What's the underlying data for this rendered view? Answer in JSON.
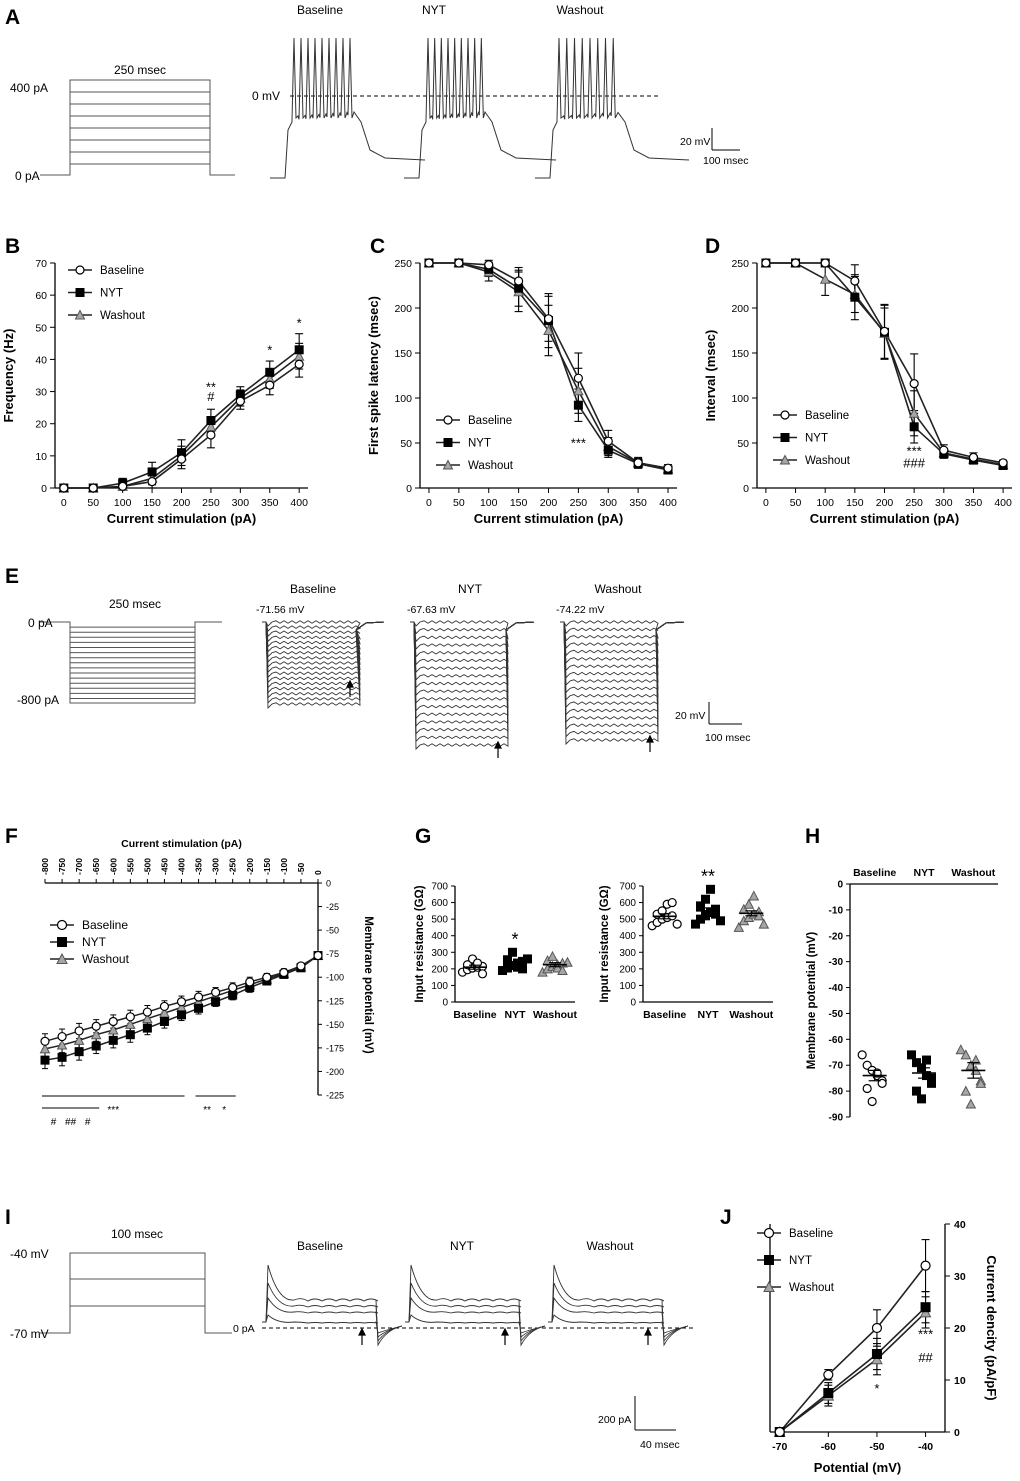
{
  "panels": {
    "A": {
      "label": "A",
      "step_duration": "250 msec",
      "step_top": "400 pA",
      "step_bottom": "0 pA",
      "zero_line": "0 mV",
      "conditions": [
        "Baseline",
        "NYT",
        "Washout"
      ],
      "scale_v": "20 mV",
      "scale_t": "100 msec"
    },
    "E": {
      "label": "E",
      "step_duration": "250 msec",
      "step_top": "0 pA",
      "step_bottom": "-800 pA",
      "conditions": [
        "Baseline",
        "NYT",
        "Washout"
      ],
      "potentials": [
        "-71.56 mV",
        "-67.63 mV",
        "-74.22 mV"
      ],
      "scale_v": "20 mV",
      "scale_t": "100 msec"
    },
    "I": {
      "label": "I",
      "step_duration": "100 msec",
      "step_top": "-40 mV",
      "step_bottom": "-70 mV",
      "zero_line": "0 pA",
      "conditions": [
        "Baseline",
        "NYT",
        "Washout"
      ],
      "scale_i": "200 pA",
      "scale_t": "40 msec"
    }
  },
  "colors": {
    "baseline": "#ffffff",
    "nyt": "#000000",
    "washout": "#a6a6a6",
    "line": "#222222"
  },
  "chart_data": [
    {
      "panel": "B",
      "type": "line",
      "ylabel": "Frequency (Hz)",
      "xlabel": "Current stimulation (pA)",
      "ylim": [
        0,
        70
      ],
      "yticks": [
        0,
        10,
        20,
        30,
        40,
        50,
        60,
        70
      ],
      "x": [
        0,
        50,
        100,
        150,
        200,
        250,
        300,
        350,
        400
      ],
      "legend": [
        "Baseline",
        "NYT",
        "Washout"
      ],
      "series": [
        {
          "name": "Baseline",
          "values": [
            0,
            0,
            0.5,
            2,
            9,
            16.5,
            27,
            32,
            38.5
          ],
          "err": [
            0,
            0,
            0.8,
            2,
            3,
            4,
            2.5,
            3,
            4
          ]
        },
        {
          "name": "NYT",
          "values": [
            0,
            0,
            1.5,
            5,
            11,
            21,
            29,
            36,
            43
          ],
          "err": [
            0,
            0,
            1.5,
            3,
            4,
            3.5,
            2.5,
            3.5,
            5
          ]
        },
        {
          "name": "Washout",
          "values": [
            0,
            0,
            0.5,
            3,
            10,
            19,
            28,
            34,
            41
          ],
          "err": [
            0,
            0,
            0.8,
            2,
            3,
            3,
            2.5,
            3,
            4
          ]
        }
      ],
      "annotations": [
        {
          "x": 250,
          "y": 30,
          "text": "**"
        },
        {
          "x": 250,
          "y": 27,
          "text": "#"
        },
        {
          "x": 350,
          "y": 41.5,
          "text": "*"
        },
        {
          "x": 400,
          "y": 50,
          "text": "*"
        }
      ]
    },
    {
      "panel": "C",
      "type": "line",
      "ylabel": "First spike latency (msec)",
      "xlabel": "Current stimulation (pA)",
      "ylim": [
        0,
        250
      ],
      "yticks": [
        0,
        50,
        100,
        150,
        200,
        250
      ],
      "x": [
        0,
        50,
        100,
        150,
        200,
        250,
        300,
        350,
        400
      ],
      "legend": [
        "Baseline",
        "NYT",
        "Washout"
      ],
      "series": [
        {
          "name": "Baseline",
          "values": [
            250,
            250,
            248,
            230,
            188,
            122,
            52,
            28,
            22
          ],
          "err": [
            0,
            0,
            5,
            15,
            25,
            28,
            12,
            6,
            4
          ]
        },
        {
          "name": "NYT",
          "values": [
            250,
            250,
            243,
            222,
            186,
            92,
            42,
            27,
            20
          ],
          "err": [
            0,
            0,
            8,
            20,
            30,
            18,
            8,
            5,
            3
          ]
        },
        {
          "name": "Washout",
          "values": [
            250,
            250,
            240,
            218,
            175,
            108,
            46,
            28,
            21
          ],
          "err": [
            0,
            0,
            10,
            22,
            28,
            25,
            10,
            5,
            3
          ]
        }
      ],
      "annotations": [
        {
          "x": 250,
          "y": 45,
          "text": "***"
        }
      ]
    },
    {
      "panel": "D",
      "type": "line",
      "ylabel": "Interval (msec)",
      "xlabel": "Current stimulation (pA)",
      "ylim": [
        0,
        250
      ],
      "yticks": [
        0,
        50,
        100,
        150,
        200,
        250
      ],
      "x": [
        0,
        50,
        100,
        150,
        200,
        250,
        300,
        350,
        400
      ],
      "legend": [
        "Baseline",
        "NYT",
        "Washout"
      ],
      "series": [
        {
          "name": "Baseline",
          "values": [
            250,
            250,
            250,
            230,
            174,
            116,
            42,
            34,
            28
          ],
          "err": [
            0,
            0,
            0,
            18,
            30,
            33,
            6,
            5,
            3
          ]
        },
        {
          "name": "NYT",
          "values": [
            250,
            250,
            250,
            212,
            173,
            68,
            38,
            31,
            25
          ],
          "err": [
            0,
            0,
            0,
            25,
            30,
            18,
            5,
            4,
            3
          ]
        },
        {
          "name": "Washout",
          "values": [
            250,
            250,
            232,
            215,
            172,
            83,
            39,
            32,
            26
          ],
          "err": [
            0,
            0,
            18,
            20,
            28,
            25,
            5,
            4,
            3
          ]
        }
      ],
      "annotations": [
        {
          "x": 250,
          "y": 36,
          "text": "***"
        },
        {
          "x": 250,
          "y": 23,
          "text": "###"
        }
      ]
    },
    {
      "panel": "F",
      "type": "line",
      "ylabel": "Membrane potential (mV)",
      "xlabel": "Current stimulation (pA)",
      "ylim": [
        -225,
        0
      ],
      "yticks": [
        0,
        -25,
        -50,
        -75,
        -100,
        -125,
        -150,
        -175,
        -200,
        -225
      ],
      "xlim": [
        -800,
        0
      ],
      "xticks": [
        -800,
        -750,
        -700,
        -650,
        -600,
        -550,
        -500,
        -450,
        -400,
        -350,
        -300,
        -250,
        -200,
        -150,
        -100,
        -50,
        0
      ],
      "x": [
        -800,
        -750,
        -700,
        -650,
        -600,
        -550,
        -500,
        -450,
        -400,
        -350,
        -300,
        -250,
        -200,
        -150,
        -100,
        -50,
        0
      ],
      "legend": [
        "Baseline",
        "NYT",
        "Washout"
      ],
      "series": [
        {
          "name": "Baseline",
          "values": [
            -168,
            -163,
            -157,
            -152,
            -147,
            -142,
            -137,
            -131,
            -126,
            -121,
            -116,
            -111,
            -105,
            -100,
            -95,
            -88,
            -77
          ],
          "err": [
            8,
            8,
            8,
            7,
            7,
            7,
            7,
            6,
            6,
            6,
            5,
            5,
            5,
            4,
            4,
            3,
            2
          ]
        },
        {
          "name": "NYT",
          "values": [
            -188,
            -185,
            -179,
            -173,
            -167,
            -161,
            -154,
            -147,
            -140,
            -133,
            -126,
            -119,
            -111,
            -104,
            -97,
            -90,
            -77
          ],
          "err": [
            9,
            9,
            9,
            8,
            8,
            8,
            7,
            7,
            6,
            6,
            5,
            5,
            5,
            4,
            4,
            3,
            2
          ]
        },
        {
          "name": "Washout",
          "values": [
            -176,
            -172,
            -167,
            -161,
            -156,
            -150,
            -144,
            -138,
            -132,
            -126,
            -120,
            -114,
            -108,
            -102,
            -96,
            -89,
            -77
          ],
          "err": [
            8,
            8,
            8,
            7,
            7,
            7,
            6,
            6,
            6,
            5,
            5,
            5,
            4,
            4,
            4,
            3,
            2
          ]
        }
      ],
      "annotations": [
        {
          "text": "***",
          "from": -800,
          "to": -400,
          "row": 1
        },
        {
          "text": "**",
          "from": -350,
          "to": -300,
          "row": 1
        },
        {
          "text": "*",
          "from": -300,
          "to": -250,
          "row": 1
        },
        {
          "text": "#",
          "from": -800,
          "to": -750,
          "row": 2
        },
        {
          "text": "##",
          "from": -750,
          "to": -700,
          "row": 2
        },
        {
          "text": "#",
          "from": -700,
          "to": -650,
          "row": 2
        }
      ]
    },
    {
      "panel": "G1",
      "type": "scatter",
      "ylabel": "Input resistance (GΩ)",
      "ylim": [
        0,
        700
      ],
      "yticks": [
        0,
        100,
        200,
        300,
        400,
        500,
        600,
        700
      ],
      "categories": [
        "Baseline",
        "NYT",
        "Washout"
      ],
      "series": [
        {
          "name": "Baseline",
          "mean": 210,
          "sem": 12,
          "points": [
            180,
            195,
            205,
            210,
            215,
            225,
            260,
            235,
            170
          ]
        },
        {
          "name": "NYT",
          "mean": 230,
          "sem": 14,
          "points": [
            190,
            205,
            220,
            235,
            245,
            255,
            300,
            210,
            200,
            260
          ]
        },
        {
          "name": "Washout",
          "mean": 225,
          "sem": 12,
          "points": [
            180,
            200,
            215,
            225,
            235,
            250,
            275,
            205,
            190,
            240
          ]
        }
      ],
      "annotations": [
        {
          "category": "NYT",
          "y": 340,
          "text": "*"
        }
      ]
    },
    {
      "panel": "G2",
      "type": "scatter",
      "ylabel": "Input resistance (GΩ)",
      "ylim": [
        0,
        700
      ],
      "yticks": [
        0,
        100,
        200,
        300,
        400,
        500,
        600,
        700
      ],
      "categories": [
        "Baseline",
        "NYT",
        "Washout"
      ],
      "series": [
        {
          "name": "Baseline",
          "mean": 517,
          "sem": 15,
          "points": [
            460,
            480,
            500,
            510,
            520,
            530,
            550,
            590,
            600,
            470
          ]
        },
        {
          "name": "NYT",
          "mean": 550,
          "sem": 18,
          "points": [
            470,
            500,
            520,
            540,
            560,
            580,
            620,
            680,
            530,
            490
          ]
        },
        {
          "name": "Washout",
          "mean": 535,
          "sem": 15,
          "points": [
            450,
            490,
            510,
            530,
            545,
            560,
            590,
            640,
            520,
            470
          ]
        }
      ],
      "annotations": [
        {
          "category": "NYT",
          "y": 720,
          "text": "**"
        }
      ]
    },
    {
      "panel": "H",
      "type": "scatter",
      "ylabel": "Membrane potential (mV)",
      "ylim": [
        -90,
        0
      ],
      "yticks": [
        0,
        -10,
        -20,
        -30,
        -40,
        -50,
        -60,
        -70,
        -80,
        -90
      ],
      "categories": [
        "Baseline",
        "NYT",
        "Washout"
      ],
      "series": [
        {
          "name": "Baseline",
          "mean": -74,
          "sem": 2,
          "points": [
            -66,
            -70,
            -72,
            -74,
            -76,
            -79,
            -84,
            -73,
            -77
          ]
        },
        {
          "name": "NYT",
          "mean": -73,
          "sem": 2,
          "points": [
            -66,
            -69,
            -71,
            -74,
            -77,
            -80,
            -83,
            -68,
            -75
          ]
        },
        {
          "name": "Washout",
          "mean": -72,
          "sem": 3,
          "points": [
            -64,
            -66,
            -70,
            -72,
            -76,
            -80,
            -85,
            -68,
            -77
          ]
        }
      ]
    },
    {
      "panel": "J",
      "type": "line",
      "ylabel": "Current dencity (pA/pF)",
      "xlabel": "Potential (mV)",
      "ylim": [
        0,
        40
      ],
      "yticks": [
        0,
        10,
        20,
        30,
        40
      ],
      "x": [
        -70,
        -60,
        -50,
        -40
      ],
      "legend": [
        "Baseline",
        "NYT",
        "Washout"
      ],
      "series": [
        {
          "name": "Baseline",
          "values": [
            0,
            11,
            20,
            32
          ],
          "err": [
            0.5,
            1,
            3.5,
            5
          ]
        },
        {
          "name": "NYT",
          "values": [
            0,
            7.5,
            15,
            24
          ],
          "err": [
            0.5,
            2,
            3,
            3
          ]
        },
        {
          "name": "Washout",
          "values": [
            0,
            7,
            14,
            23
          ],
          "err": [
            0.5,
            2,
            3,
            3
          ]
        }
      ],
      "annotations": [
        {
          "x": -50,
          "y": 7.5,
          "text": "*"
        },
        {
          "x": -40,
          "y": 18,
          "text": "***"
        },
        {
          "x": -40,
          "y": 13.5,
          "text": "##"
        }
      ]
    }
  ]
}
